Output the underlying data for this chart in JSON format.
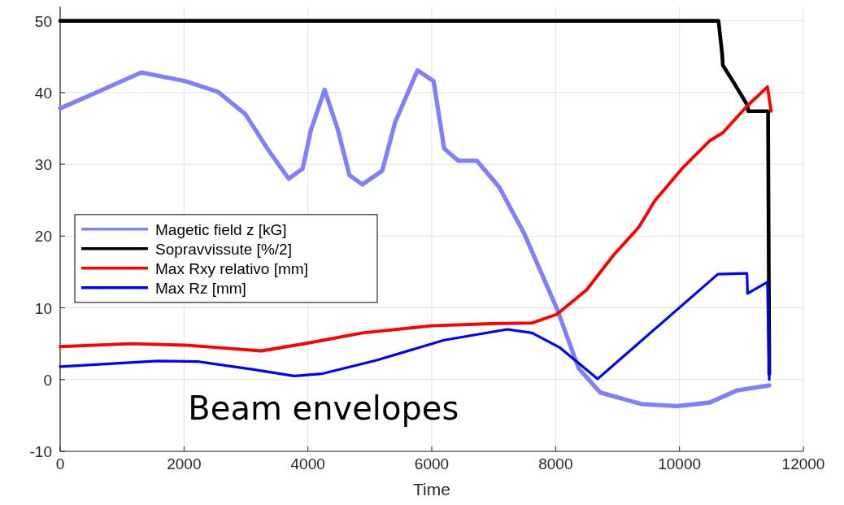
{
  "chart_data": {
    "type": "line",
    "xlabel": "Time",
    "xlim": [
      0,
      12000
    ],
    "xticks": [
      0,
      2000,
      4000,
      6000,
      8000,
      10000,
      12000
    ],
    "ylim": [
      -10,
      52
    ],
    "yticks": [
      -10,
      0,
      10,
      20,
      30,
      40,
      50
    ],
    "grid": true,
    "legend": "left",
    "line_style": "solid",
    "marker": "none",
    "annotations": [
      "Beam envelopes"
    ],
    "series": [
      {
        "name": "Magetic field z [kG]",
        "color": "#8080ff",
        "x": [
          0,
          476,
          1310,
          2020,
          2550,
          2990,
          3345,
          3690,
          3915,
          4050,
          4270,
          4485,
          4670,
          4880,
          5200,
          5410,
          5770,
          6030,
          6200,
          6430,
          6730,
          7090,
          7490,
          8020,
          8370,
          8720,
          9380,
          9960,
          10490,
          10930,
          11450
        ],
        "values": [
          37.8,
          39.6,
          42.8,
          41.6,
          40.1,
          37,
          32.2,
          28,
          29.4,
          34.8,
          40.4,
          34.8,
          28.5,
          27.2,
          29.1,
          35.9,
          43.1,
          41.6,
          32.2,
          30.5,
          30.5,
          26.8,
          20.4,
          9.9,
          1.6,
          -1.8,
          -3.4,
          -3.7,
          -3.2,
          -1.5,
          -0.8
        ]
      },
      {
        "name": "Sopravvissute [%/2]",
        "color": "#000000",
        "x": [
          0,
          10630,
          10690,
          10700,
          10890,
          11100,
          11110,
          11430,
          11450
        ],
        "values": [
          50,
          50,
          45.3,
          43.8,
          41.2,
          38.2,
          37.4,
          37.4,
          0.8
        ]
      },
      {
        "name": "Max Rxy relativo [mm]",
        "color": "#ff0000",
        "x": [
          0,
          1140,
          2020,
          3250,
          4010,
          4880,
          5990,
          6960,
          7620,
          8020,
          8500,
          8940,
          9340,
          9600,
          10040,
          10490,
          10700,
          11100,
          11420,
          11480
        ],
        "values": [
          4.6,
          5,
          4.8,
          4,
          5.1,
          6.5,
          7.5,
          7.8,
          7.9,
          9.1,
          12.5,
          17.4,
          21.2,
          24.9,
          29.4,
          33.3,
          34.4,
          38.2,
          40.8,
          37.4
        ]
      },
      {
        "name": "Max Rz [mm]",
        "color": "#0000ff",
        "x": [
          0,
          1570,
          2240,
          3120,
          3780,
          4220,
          5110,
          6200,
          7220,
          7620,
          8060,
          8680,
          10620,
          11090,
          11100,
          11420,
          11450
        ],
        "values": [
          1.8,
          2.6,
          2.5,
          1.4,
          0.5,
          0.8,
          2.7,
          5.5,
          7,
          6.5,
          4.5,
          0.1,
          14.7,
          14.8,
          12,
          13.6,
          0
        ]
      }
    ]
  }
}
